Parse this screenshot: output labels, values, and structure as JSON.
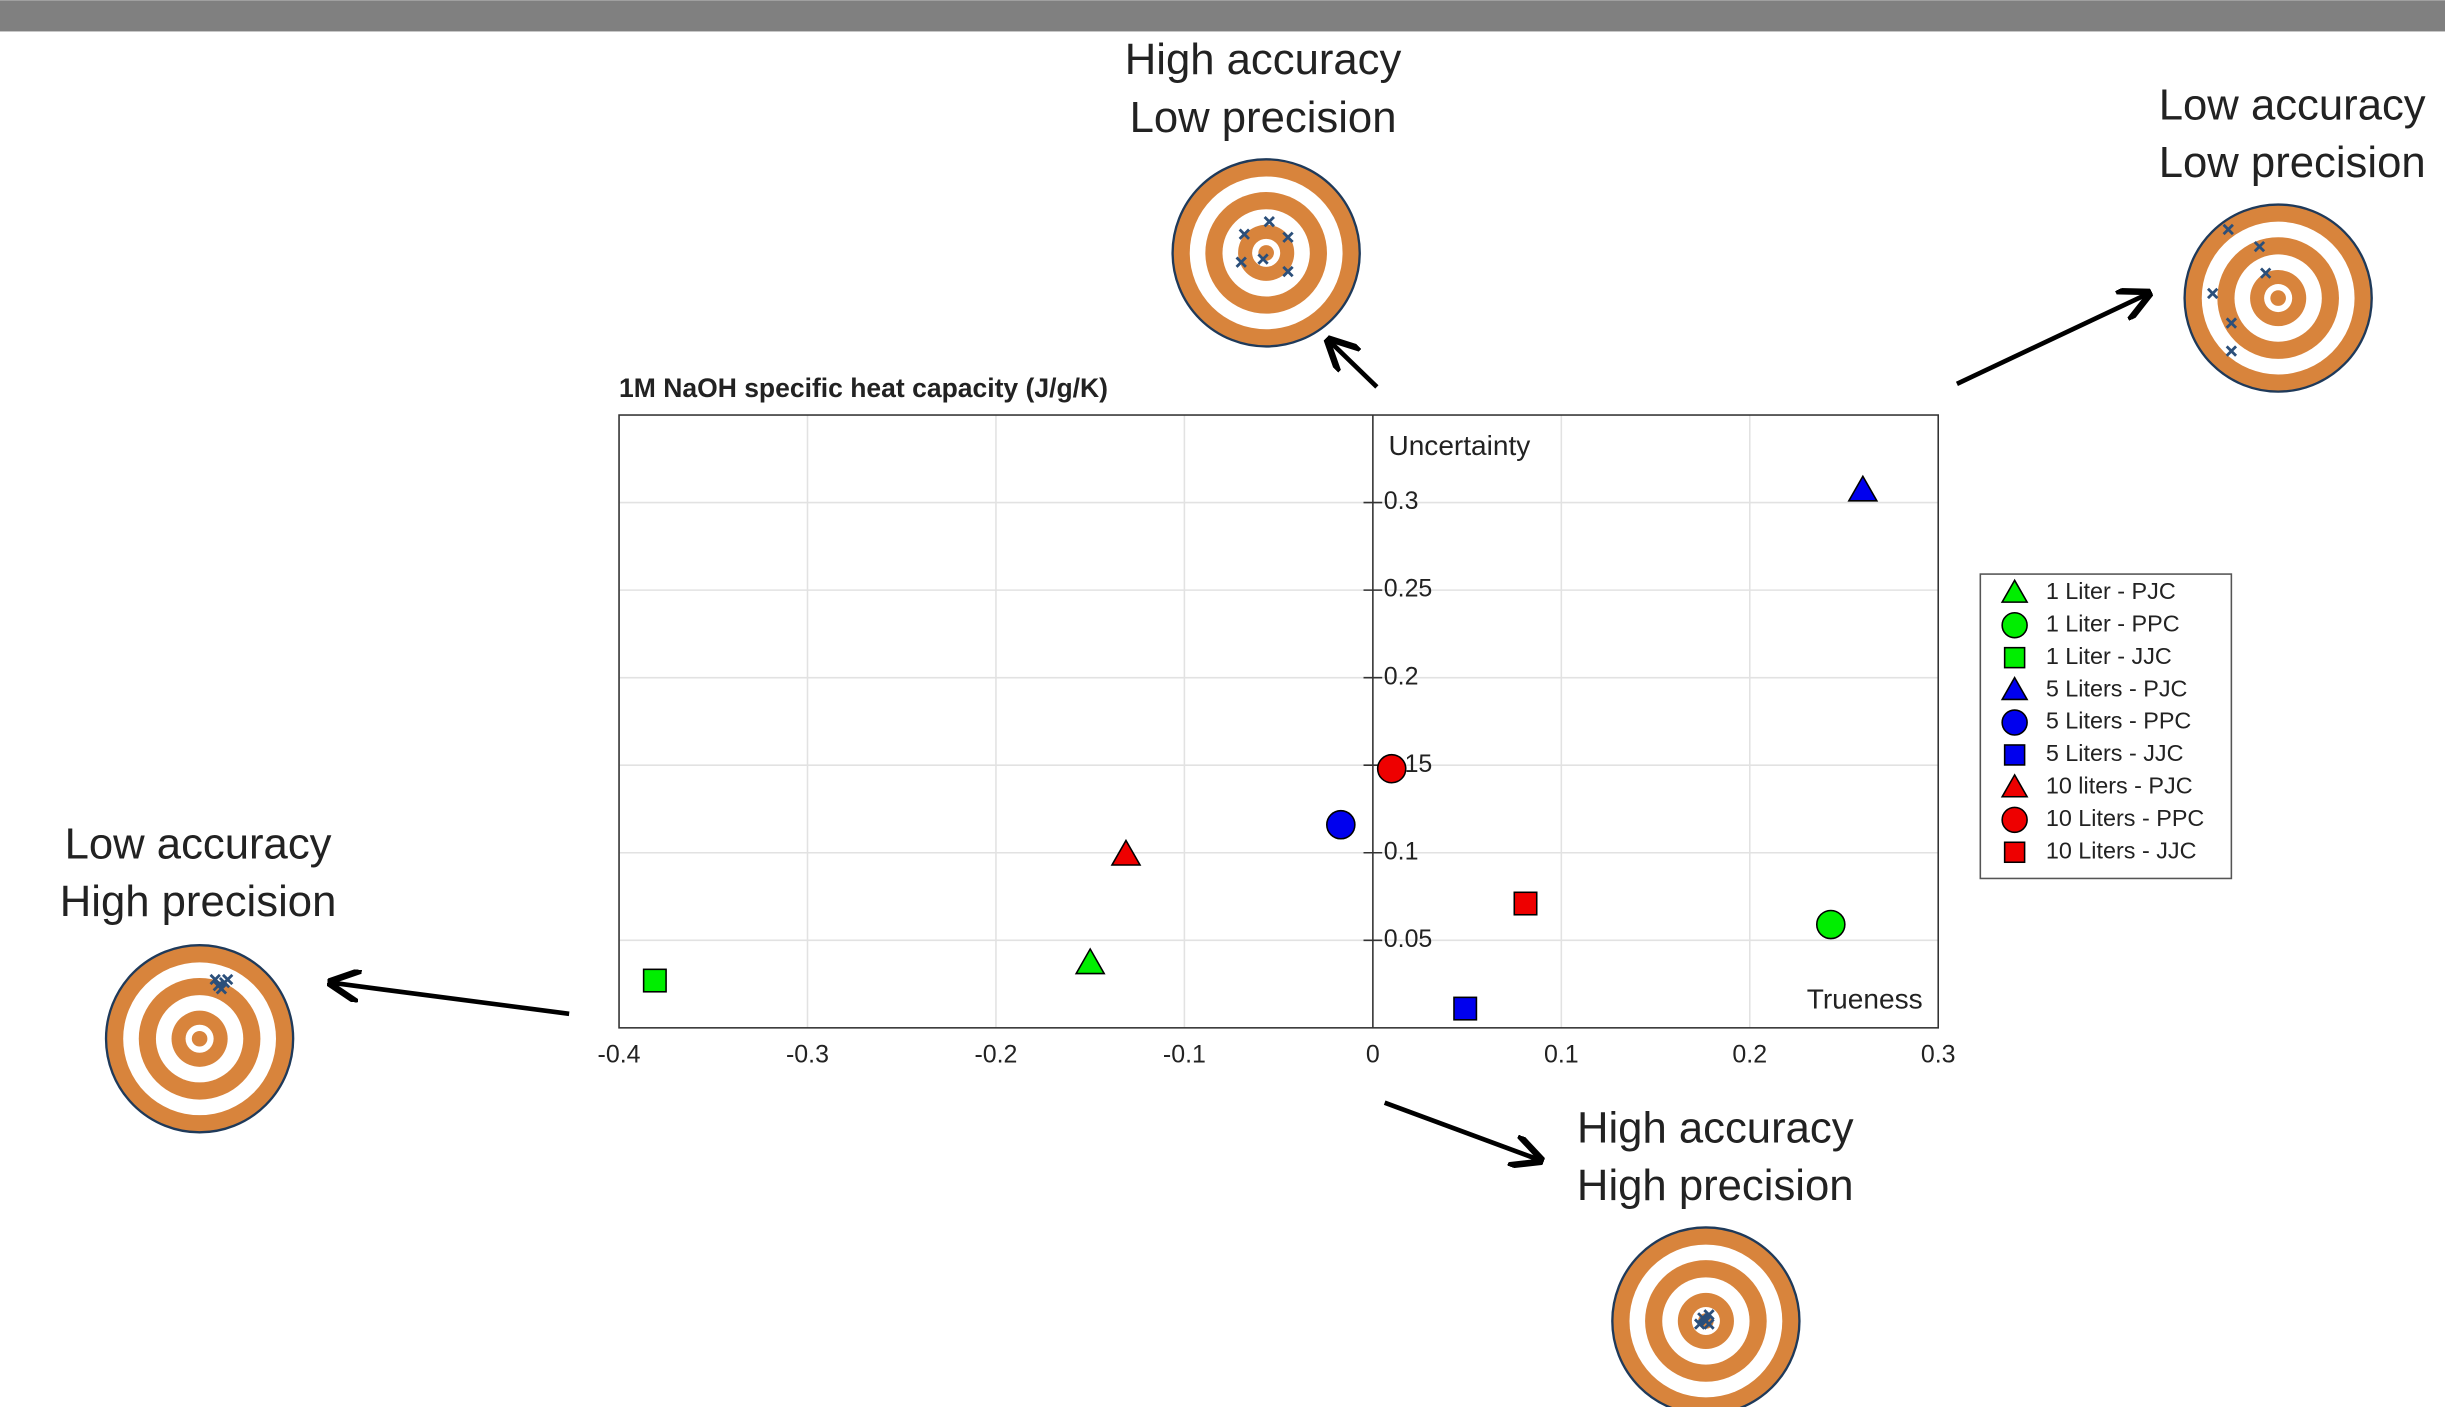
{
  "chart_data": {
    "type": "scatter",
    "title": "1M NaOH specific heat capacity (J/g/K)",
    "xlabel": "Trueness",
    "ylabel": "Uncertainty",
    "xlim": [
      -0.4,
      0.3
    ],
    "ylim": [
      0,
      0.35
    ],
    "xticks": [
      -0.4,
      -0.3,
      -0.2,
      -0.1,
      0,
      0.1,
      0.2,
      0.3
    ],
    "yticks": [
      0.05,
      0.1,
      0.15,
      0.2,
      0.25,
      0.3
    ],
    "grid": true,
    "legend": "right",
    "series": [
      {
        "name": "1 Liter - PJC",
        "color": "#00ee00",
        "marker": "triangle",
        "x": [
          -0.15
        ],
        "values": [
          0.037
        ]
      },
      {
        "name": "1 Liter - PPC",
        "color": "#00ee00",
        "marker": "circle",
        "x": [
          0.243
        ],
        "values": [
          0.059
        ]
      },
      {
        "name": "1 Liter - JJC",
        "color": "#00ee00",
        "marker": "square",
        "x": [
          -0.381
        ],
        "values": [
          0.027
        ]
      },
      {
        "name": "5 Liters - PJC",
        "color": "#0000ee",
        "marker": "triangle",
        "x": [
          0.26
        ],
        "values": [
          0.307
        ]
      },
      {
        "name": "5 Liters - PPC",
        "color": "#0000ee",
        "marker": "circle",
        "x": [
          -0.017
        ],
        "values": [
          0.116
        ]
      },
      {
        "name": "5 Liters - JJC",
        "color": "#0000ee",
        "marker": "square",
        "x": [
          0.049
        ],
        "values": [
          0.011
        ]
      },
      {
        "name": "10 liters - PJC",
        "color": "#ee0000",
        "marker": "triangle",
        "x": [
          -0.131
        ],
        "values": [
          0.099
        ]
      },
      {
        "name": "10 Liters - PPC",
        "color": "#ee0000",
        "marker": "circle",
        "x": [
          0.01
        ],
        "values": [
          0.148
        ]
      },
      {
        "name": "10 Liters - JJC",
        "color": "#ee0000",
        "marker": "square",
        "x": [
          0.081
        ],
        "values": [
          0.071
        ]
      }
    ],
    "annotations": [
      {
        "lines": [
          "High accuracy",
          "Low precision"
        ]
      },
      {
        "lines": [
          "Low accuracy",
          "Low precision"
        ]
      },
      {
        "lines": [
          "Low accuracy",
          "High precision"
        ]
      },
      {
        "lines": [
          "High accuracy",
          "High precision"
        ]
      }
    ]
  }
}
